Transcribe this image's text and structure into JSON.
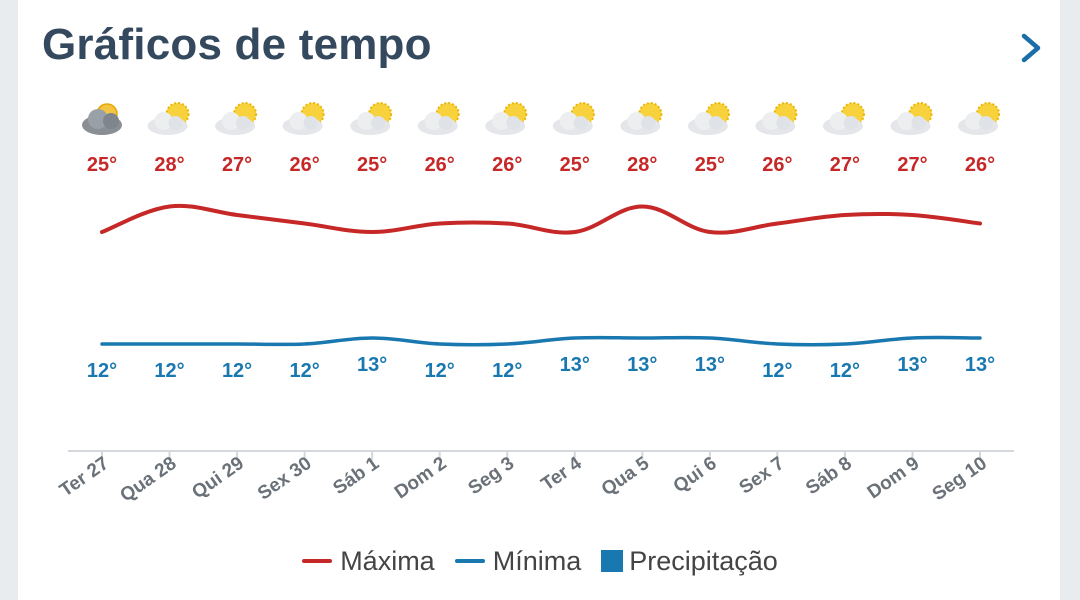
{
  "header": {
    "title": "Gráficos de tempo"
  },
  "colors": {
    "max": "#c62828",
    "min": "#1a78b0",
    "precip": "#1a78b0",
    "title": "#34495e"
  },
  "legend": {
    "max_label": "Máxima",
    "min_label": "Mínima",
    "precip_label": "Precipitação"
  },
  "chart_data": {
    "type": "line",
    "categories": [
      "Ter 27",
      "Qua 28",
      "Qui 29",
      "Sex 30",
      "Sáb 1",
      "Dom 2",
      "Seg 3",
      "Ter 4",
      "Qua 5",
      "Qui 6",
      "Sex 7",
      "Sáb 8",
      "Dom 9",
      "Seg 10"
    ],
    "icons": [
      "cloudy-sun-icon",
      "partly-sunny-icon",
      "partly-sunny-icon",
      "partly-sunny-icon",
      "partly-sunny-icon",
      "partly-sunny-icon",
      "partly-sunny-icon",
      "partly-sunny-icon",
      "partly-sunny-icon",
      "partly-sunny-icon",
      "partly-sunny-icon",
      "partly-sunny-icon",
      "partly-sunny-icon",
      "partly-sunny-icon"
    ],
    "series": [
      {
        "name": "Máxima",
        "values": [
          25,
          28,
          27,
          26,
          25,
          26,
          26,
          25,
          28,
          25,
          26,
          27,
          27,
          26
        ]
      },
      {
        "name": "Mínima",
        "values": [
          12,
          12,
          12,
          12,
          13,
          12,
          12,
          13,
          13,
          13,
          12,
          12,
          13,
          13
        ]
      },
      {
        "name": "Precipitação",
        "values": [
          0,
          0,
          0,
          0,
          0,
          0,
          0,
          0,
          0,
          0,
          0,
          0,
          0,
          0
        ]
      }
    ],
    "unit": "°",
    "legend_position": "bottom"
  }
}
